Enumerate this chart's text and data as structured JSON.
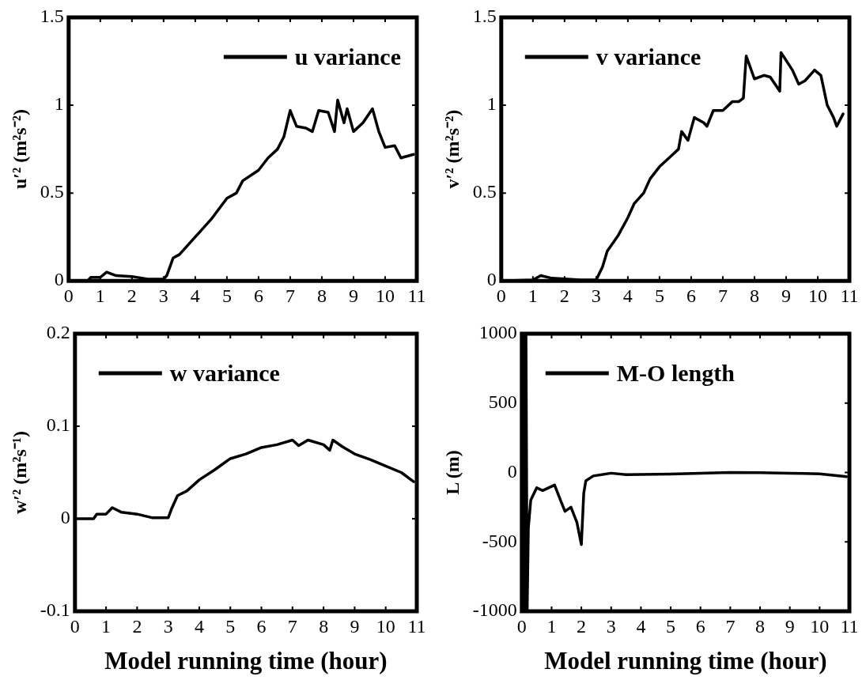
{
  "chart_data": [
    {
      "type": "line",
      "ylabel": "u′² (m²s⁻²)",
      "xlim": [
        0,
        11
      ],
      "xticks": [
        0,
        1,
        2,
        3,
        4,
        5,
        6,
        7,
        8,
        9,
        10,
        11
      ],
      "ylim": [
        0,
        1.5
      ],
      "yticks": [
        0,
        0.5,
        1,
        1.5
      ],
      "grid": false,
      "legend": "top right",
      "marker": "none",
      "line_style": "solid",
      "series": [
        {
          "name": "u variance",
          "color": "#000000",
          "x": [
            0,
            0.6,
            0.7,
            1.0,
            1.2,
            1.5,
            2.0,
            2.5,
            3.0,
            3.1,
            3.3,
            3.5,
            4,
            4.5,
            5,
            5.3,
            5.5,
            6,
            6.3,
            6.6,
            6.8,
            7.0,
            7.2,
            7.5,
            7.7,
            7.9,
            8.2,
            8.4,
            8.5,
            8.7,
            8.8,
            9.0,
            9.3,
            9.6,
            9.8,
            10,
            10.3,
            10.5,
            10.9
          ],
          "values": [
            0,
            0,
            0.02,
            0.02,
            0.05,
            0.03,
            0.025,
            0.01,
            0.01,
            0.03,
            0.13,
            0.15,
            0.25,
            0.35,
            0.47,
            0.5,
            0.57,
            0.63,
            0.7,
            0.75,
            0.82,
            0.97,
            0.88,
            0.87,
            0.85,
            0.97,
            0.96,
            0.85,
            1.03,
            0.9,
            0.98,
            0.85,
            0.9,
            0.98,
            0.85,
            0.76,
            0.77,
            0.7,
            0.72
          ]
        }
      ]
    },
    {
      "type": "line",
      "ylabel": "v′² (m²s⁻²)",
      "xlim": [
        0,
        11
      ],
      "xticks": [
        0,
        1,
        2,
        3,
        4,
        5,
        6,
        7,
        8,
        9,
        10,
        11
      ],
      "ylim": [
        0,
        1.5
      ],
      "yticks": [
        0,
        0.5,
        1,
        1.5
      ],
      "grid": false,
      "legend": "top left",
      "marker": "none",
      "line_style": "solid",
      "series": [
        {
          "name": "v variance",
          "color": "#000000",
          "x": [
            0,
            1,
            1.25,
            1.6,
            2.5,
            3.0,
            3.2,
            3.35,
            3.7,
            4.0,
            4.2,
            4.5,
            4.7,
            5.0,
            5.3,
            5.6,
            5.7,
            5.9,
            6.1,
            6.4,
            6.5,
            6.7,
            7.0,
            7.3,
            7.5,
            7.65,
            7.74,
            8.0,
            8.3,
            8.5,
            8.8,
            8.84,
            9.2,
            9.4,
            9.6,
            9.9,
            10.1,
            10.3,
            10.5,
            10.6,
            10.8
          ],
          "values": [
            0,
            0.005,
            0.03,
            0.015,
            0.005,
            0.005,
            0.08,
            0.17,
            0.26,
            0.36,
            0.44,
            0.5,
            0.58,
            0.65,
            0.7,
            0.75,
            0.85,
            0.8,
            0.93,
            0.9,
            0.88,
            0.97,
            0.97,
            1.02,
            1.02,
            1.04,
            1.28,
            1.15,
            1.17,
            1.16,
            1.08,
            1.3,
            1.2,
            1.12,
            1.14,
            1.2,
            1.17,
            1.0,
            0.93,
            0.88,
            0.95
          ]
        }
      ]
    },
    {
      "type": "line",
      "xlabel": "Model running time (hour)",
      "ylabel": "w′² (m²s⁻¹)",
      "xlim": [
        0,
        11
      ],
      "xticks": [
        0,
        1,
        2,
        3,
        4,
        5,
        6,
        7,
        8,
        9,
        10,
        11
      ],
      "ylim": [
        -0.1,
        0.2
      ],
      "yticks": [
        -0.1,
        0,
        0.1,
        0.2
      ],
      "grid": false,
      "legend": "top left",
      "marker": "none",
      "line_style": "solid",
      "series": [
        {
          "name": "w variance",
          "color": "#000000",
          "x": [
            0,
            0.6,
            0.7,
            1.0,
            1.2,
            1.5,
            2.0,
            2.5,
            3.0,
            3.1,
            3.3,
            3.6,
            4.0,
            4.5,
            5.0,
            5.5,
            6.0,
            6.5,
            7.0,
            7.2,
            7.5,
            8.0,
            8.2,
            8.3,
            8.6,
            9.0,
            9.5,
            10,
            10.5,
            10.9
          ],
          "values": [
            0,
            0,
            0.005,
            0.005,
            0.012,
            0.007,
            0.005,
            0.001,
            0.001,
            0.01,
            0.025,
            0.03,
            0.042,
            0.053,
            0.065,
            0.07,
            0.077,
            0.08,
            0.085,
            0.079,
            0.085,
            0.08,
            0.074,
            0.085,
            0.078,
            0.07,
            0.064,
            0.057,
            0.05,
            0.04
          ]
        }
      ]
    },
    {
      "type": "line",
      "xlabel": "Model running time (hour)",
      "ylabel": "L (m)",
      "xlim": [
        0,
        11
      ],
      "xticks": [
        0,
        1,
        2,
        3,
        4,
        5,
        6,
        7,
        8,
        9,
        10,
        11
      ],
      "ylim": [
        -1000,
        1000
      ],
      "yticks": [
        -1000,
        -500,
        0,
        500,
        1000
      ],
      "grid": false,
      "legend": "top left",
      "marker": "none",
      "line_style": "solid",
      "series": [
        {
          "name": "M-O length",
          "color": "#000000",
          "x": [
            0.02,
            0.06,
            0.1,
            0.14,
            0.18,
            0.22,
            0.3,
            0.5,
            0.7,
            0.8,
            1.1,
            1.3,
            1.45,
            1.65,
            1.85,
            2.0,
            2.08,
            2.15,
            2.4,
            3,
            3.5,
            5,
            7,
            8,
            9,
            10,
            10.9
          ],
          "values": [
            -1000,
            1000,
            -1000,
            1000,
            -1000,
            -400,
            -200,
            -110,
            -130,
            -120,
            -90,
            -200,
            -280,
            -250,
            -360,
            -520,
            -150,
            -60,
            -25,
            -5,
            -15,
            -12,
            0,
            -2,
            -5,
            -10,
            -30
          ]
        }
      ]
    }
  ]
}
